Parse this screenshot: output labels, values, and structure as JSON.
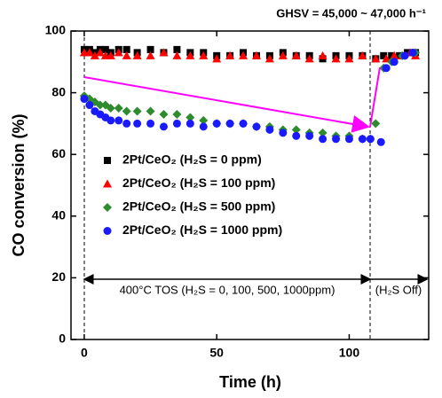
{
  "chart_data": {
    "type": "scatter",
    "xlabel": "Time (h)",
    "ylabel": "CO conversion (%)",
    "xlim": [
      -5,
      130
    ],
    "xticks": [
      0,
      50,
      100
    ],
    "ylim": [
      0,
      100
    ],
    "yticks": [
      0,
      20,
      40,
      60,
      80,
      100
    ],
    "annotations": [
      "GHSV = 45,000 ~ 47,000 h⁻¹",
      "400°C TOS (H₂S = 0, 100, 500, 1000ppm)",
      "(H₂S Off)"
    ],
    "series": [
      {
        "name": "2Pt/CeO₂ (H₂S = 0 ppm)",
        "color": "#000000",
        "marker": "square",
        "x": [
          0,
          2,
          4,
          6,
          8,
          10,
          13,
          16,
          20,
          25,
          30,
          35,
          40,
          45,
          50,
          55,
          60,
          65,
          70,
          75,
          80,
          85,
          90,
          95,
          100,
          105,
          110,
          113,
          116,
          119,
          122,
          125
        ],
        "values": [
          94,
          94,
          93,
          94,
          94,
          93,
          94,
          94,
          93,
          94,
          93,
          94,
          93,
          93,
          92,
          92,
          93,
          92,
          92,
          93,
          92,
          92,
          91,
          92,
          92,
          92,
          91,
          92,
          92,
          92,
          93,
          93
        ]
      },
      {
        "name": "2Pt/CeO₂ (H₂S = 100 ppm)",
        "color": "#ff0000",
        "marker": "triangle",
        "x": [
          0,
          2,
          4,
          6,
          8,
          10,
          13,
          16,
          20,
          25,
          30,
          35,
          40,
          45,
          50,
          55,
          60,
          65,
          70,
          75,
          80,
          85,
          90,
          95,
          100,
          105,
          110,
          114,
          117,
          120,
          123,
          125
        ],
        "values": [
          93,
          93,
          92,
          93,
          92,
          92,
          93,
          92,
          92,
          92,
          93,
          92,
          92,
          92,
          91,
          92,
          92,
          92,
          91,
          92,
          92,
          91,
          92,
          91,
          91,
          92,
          91,
          91,
          92,
          92,
          93,
          92
        ]
      },
      {
        "name": "2Pt/CeO₂ (H₂S = 500 ppm)",
        "color": "#2e8b2e",
        "marker": "diamond",
        "x": [
          0,
          2,
          4,
          6,
          8,
          10,
          13,
          16,
          20,
          25,
          30,
          35,
          40,
          45,
          50,
          55,
          60,
          65,
          70,
          75,
          80,
          85,
          90,
          95,
          100,
          105,
          108,
          110,
          113,
          116,
          120,
          125
        ],
        "values": [
          79,
          78,
          77,
          76,
          76,
          75,
          75,
          74,
          74,
          74,
          73,
          73,
          72,
          71,
          70,
          70,
          70,
          69,
          69,
          68,
          68,
          67,
          67,
          66,
          66,
          65,
          65,
          70,
          88,
          90,
          92,
          93
        ]
      },
      {
        "name": "2Pt/CeO₂ (H₂S = 1000 ppm)",
        "color": "#1a1aff",
        "marker": "circle",
        "x": [
          0,
          2,
          4,
          6,
          8,
          10,
          13,
          16,
          20,
          25,
          30,
          35,
          40,
          45,
          50,
          55,
          60,
          65,
          70,
          75,
          80,
          85,
          90,
          95,
          100,
          105,
          108,
          112,
          114,
          117,
          121,
          124
        ],
        "values": [
          78,
          76,
          74,
          73,
          72,
          71,
          71,
          70,
          70,
          70,
          69,
          70,
          70,
          69,
          70,
          70,
          70,
          69,
          68,
          67,
          66,
          66,
          65,
          65,
          65,
          65,
          65,
          64,
          88,
          90,
          92,
          93
        ]
      }
    ]
  }
}
